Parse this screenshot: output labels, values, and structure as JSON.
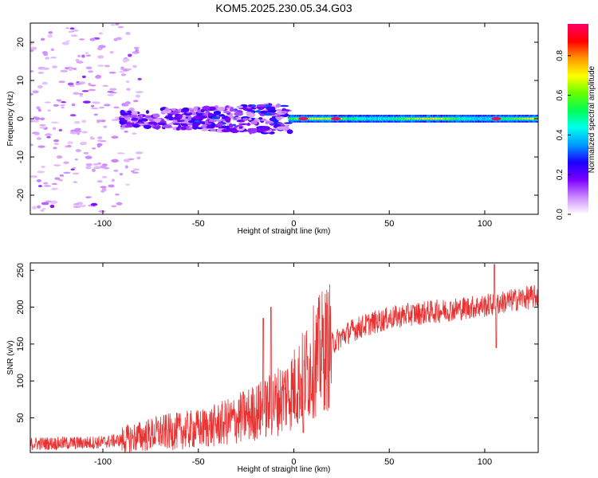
{
  "chart_data": [
    {
      "type": "heatmap",
      "title": "KOM5.2025.230.05.34.G03",
      "xlabel": "Height of straight line (km)",
      "ylabel": "Frequency (Hz)",
      "xlim": [
        -138,
        128
      ],
      "ylim": [
        -25,
        25
      ],
      "x_ticks": [
        -100,
        -50,
        0,
        50,
        100
      ],
      "y_ticks": [
        -20,
        -10,
        0,
        10,
        20
      ],
      "colorbar": {
        "label": "Normalized spectral amplitude",
        "range": [
          0,
          0.96
        ],
        "ticks": [
          0.0,
          0.2,
          0.4,
          0.6,
          0.8
        ],
        "tick_labels": [
          "0.0",
          "0.2",
          "0.4",
          "0.6",
          "0.8"
        ],
        "colors": [
          "#ffffff",
          "#cc88ff",
          "#7a00ff",
          "#1a00ff",
          "#0099ff",
          "#00ffee",
          "#00ff55",
          "#66ff00",
          "#ffff00",
          "#ff9900",
          "#ff0000",
          "#ff0066"
        ]
      },
      "features": [
        {
          "name": "sparse noise",
          "x_range": [
            -138,
            -90
          ],
          "freq_range": [
            -25,
            25
          ],
          "amplitude": 0.08
        },
        {
          "name": "turbulent band",
          "x_range": [
            -90,
            -2
          ],
          "freq_range": [
            -6,
            6
          ],
          "amplitude": 0.2
        },
        {
          "name": "steady carrier",
          "x_range": [
            -2,
            128
          ],
          "freq_range": [
            -1,
            1
          ],
          "amplitude": 0.45
        },
        {
          "name": "carrier peaks",
          "x_values": [
            5,
            22,
            106
          ],
          "amplitude": 0.95
        }
      ]
    },
    {
      "type": "line",
      "xlabel": "Height of straight line (km)",
      "ylabel": "SNR (v/v)",
      "xlim": [
        -138,
        128
      ],
      "ylim": [
        3,
        260
      ],
      "x_ticks": [
        -100,
        -50,
        0,
        50,
        100
      ],
      "y_ticks": [
        50,
        100,
        150,
        200,
        250
      ],
      "series": [
        {
          "name": "SNR",
          "color": "#e83232",
          "trend_x": [
            -138,
            -110,
            -100,
            -90,
            -80,
            -70,
            -60,
            -50,
            -40,
            -30,
            -20,
            -15,
            -10,
            -5,
            0,
            5,
            10,
            15,
            20,
            25,
            30,
            40,
            50,
            60,
            70,
            80,
            90,
            100,
            110,
            120,
            128
          ],
          "trend_y": [
            15,
            16,
            17,
            20,
            25,
            30,
            32,
            35,
            40,
            48,
            58,
            62,
            70,
            80,
            90,
            105,
            125,
            140,
            150,
            160,
            168,
            178,
            185,
            190,
            193,
            196,
            199,
            202,
            207,
            212,
            215
          ],
          "spikes": [
            {
              "x": -16,
              "y": 185
            },
            {
              "x": -12,
              "y": 200
            },
            {
              "x": 5,
              "y": 30
            },
            {
              "x": 105,
              "y": 258
            },
            {
              "x": 106,
              "y": 145
            }
          ]
        }
      ]
    }
  ]
}
